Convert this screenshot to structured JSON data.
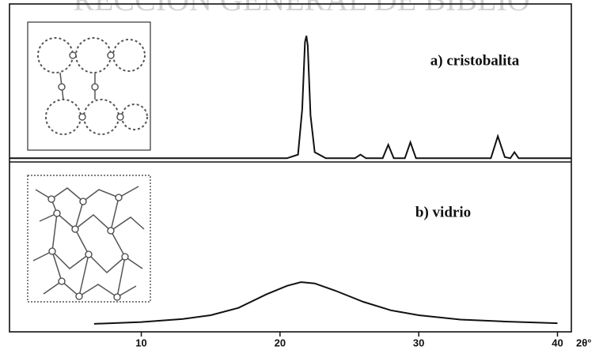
{
  "watermark": "RECCIÓN GENERAL DE BIBLIO",
  "chart_data": [
    {
      "type": "line",
      "label": "a) cristobalita",
      "xlim": [
        0.5,
        41
      ],
      "ylim": [
        -3,
        126
      ],
      "x": [
        0.5,
        20.5,
        21.3,
        21.6,
        21.8,
        21.9,
        22.0,
        22.2,
        22.5,
        23.3,
        25.4,
        25.8,
        26.2,
        27.4,
        27.8,
        28.2,
        29.0,
        29.4,
        29.8,
        35.2,
        35.7,
        36.2,
        36.6,
        36.9,
        37.2,
        41
      ],
      "values": [
        0,
        0,
        3,
        40,
        95,
        100,
        92,
        35,
        5,
        0,
        0,
        3,
        0,
        0,
        11,
        0,
        0,
        13,
        0,
        0,
        18,
        1,
        0,
        5,
        0,
        0
      ],
      "color": "#111111"
    },
    {
      "type": "line",
      "label": "b) vidrio",
      "xlim": [
        0.5,
        41
      ],
      "ylim": [
        -6.5,
        132
      ],
      "x": [
        6.6,
        10,
        13,
        15,
        17,
        19,
        20.5,
        21.5,
        22.5,
        24,
        26,
        28,
        30,
        33,
        36,
        40
      ],
      "values": [
        0,
        1.5,
        4,
        7,
        13,
        24,
        31,
        34,
        33,
        27,
        18,
        11,
        7,
        3.5,
        2,
        0.5
      ],
      "color": "#111111",
      "xticks": [
        10,
        20,
        30,
        40
      ],
      "xlabel": "2θ°"
    }
  ]
}
